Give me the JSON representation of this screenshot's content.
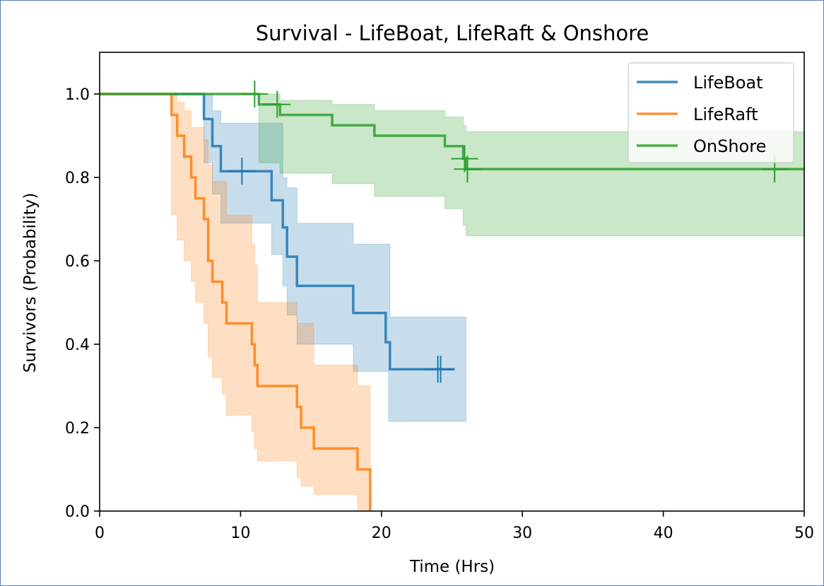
{
  "chart_data": {
    "type": "line",
    "title": "Survival - LifeBoat, LifeRaft & Onshore",
    "xlabel": "Time (Hrs)",
    "ylabel": "Survivors (Probability)",
    "xlim": [
      0,
      50
    ],
    "ylim": [
      0,
      1.1
    ],
    "xticks": [
      0,
      10,
      20,
      30,
      40,
      50
    ],
    "xtick_labels": [
      "0",
      "10",
      "20",
      "30",
      "40",
      "50"
    ],
    "yticks": [
      0.0,
      0.2,
      0.4,
      0.6,
      0.8,
      1.0
    ],
    "ytick_labels": [
      "0.0",
      "0.2",
      "0.4",
      "0.6",
      "0.8",
      "1.0"
    ],
    "grid": false,
    "legend_position": "top-right",
    "series": [
      {
        "name": "LifeBoat",
        "color": "#1f77b4",
        "steps": [
          [
            0,
            1.0
          ],
          [
            7.4,
            0.94
          ],
          [
            8.0,
            0.875
          ],
          [
            8.6,
            0.815
          ],
          [
            12.2,
            0.745
          ],
          [
            13.0,
            0.68
          ],
          [
            13.3,
            0.61
          ],
          [
            14.0,
            0.54
          ],
          [
            18.0,
            0.475
          ],
          [
            20.3,
            0.405
          ],
          [
            20.6,
            0.34
          ]
        ],
        "end_x": 25.2,
        "ci_upper": [
          [
            0,
            1.0
          ],
          [
            7.4,
            1.0
          ],
          [
            8.0,
            0.96
          ],
          [
            8.6,
            0.93
          ],
          [
            12.2,
            0.93
          ],
          [
            13.0,
            0.8
          ],
          [
            13.3,
            0.775
          ],
          [
            14.0,
            0.69
          ],
          [
            18.0,
            0.64
          ],
          [
            20.6,
            0.465
          ],
          [
            26.0,
            0.465
          ]
        ],
        "ci_lower": [
          [
            0,
            1.0
          ],
          [
            7.4,
            0.835
          ],
          [
            8.0,
            0.76
          ],
          [
            8.6,
            0.69
          ],
          [
            12.2,
            0.615
          ],
          [
            13.0,
            0.54
          ],
          [
            13.3,
            0.47
          ],
          [
            14.0,
            0.4
          ],
          [
            18.0,
            0.335
          ],
          [
            20.5,
            0.215
          ],
          [
            26.0,
            0.215
          ]
        ],
        "censored": [
          [
            10.1,
            0.815
          ],
          [
            24.0,
            0.34
          ],
          [
            24.2,
            0.34
          ]
        ]
      },
      {
        "name": "LifeRaft",
        "color": "#ff7f0e",
        "steps": [
          [
            0,
            1.0
          ],
          [
            5.1,
            0.95
          ],
          [
            5.5,
            0.9
          ],
          [
            6.0,
            0.85
          ],
          [
            6.5,
            0.8
          ],
          [
            6.8,
            0.75
          ],
          [
            7.4,
            0.7
          ],
          [
            7.7,
            0.6
          ],
          [
            8.0,
            0.55
          ],
          [
            8.7,
            0.5
          ],
          [
            9.0,
            0.45
          ],
          [
            10.8,
            0.4
          ],
          [
            11.0,
            0.35
          ],
          [
            11.2,
            0.3
          ],
          [
            14.0,
            0.25
          ],
          [
            14.3,
            0.2
          ],
          [
            15.2,
            0.15
          ],
          [
            18.3,
            0.1
          ],
          [
            19.2,
            0.0
          ]
        ],
        "end_x": 19.2,
        "ci_upper": [
          [
            0,
            1.0
          ],
          [
            5.1,
            1.0
          ],
          [
            5.5,
            0.98
          ],
          [
            6.0,
            0.96
          ],
          [
            6.5,
            0.92
          ],
          [
            7.4,
            0.89
          ],
          [
            7.7,
            0.83
          ],
          [
            8.0,
            0.79
          ],
          [
            9.0,
            0.71
          ],
          [
            10.8,
            0.64
          ],
          [
            11.0,
            0.59
          ],
          [
            11.2,
            0.5
          ],
          [
            14.0,
            0.45
          ],
          [
            15.2,
            0.35
          ],
          [
            18.3,
            0.3
          ],
          [
            19.2,
            0.3
          ]
        ],
        "ci_lower": [
          [
            0,
            1.0
          ],
          [
            5.1,
            0.71
          ],
          [
            5.5,
            0.65
          ],
          [
            6.0,
            0.6
          ],
          [
            6.5,
            0.55
          ],
          [
            6.8,
            0.5
          ],
          [
            7.4,
            0.45
          ],
          [
            7.7,
            0.37
          ],
          [
            8.0,
            0.32
          ],
          [
            8.7,
            0.28
          ],
          [
            9.0,
            0.23
          ],
          [
            10.8,
            0.19
          ],
          [
            11.0,
            0.15
          ],
          [
            11.2,
            0.12
          ],
          [
            14.0,
            0.08
          ],
          [
            14.3,
            0.06
          ],
          [
            15.2,
            0.04
          ],
          [
            18.3,
            0.0
          ],
          [
            19.2,
            0.0
          ]
        ],
        "censored": []
      },
      {
        "name": "OnShore",
        "color": "#2ca02c",
        "steps": [
          [
            0,
            1.0
          ],
          [
            11.3,
            0.975
          ],
          [
            12.8,
            0.95
          ],
          [
            16.5,
            0.925
          ],
          [
            19.5,
            0.9
          ],
          [
            24.5,
            0.875
          ],
          [
            25.8,
            0.845
          ],
          [
            26.0,
            0.82
          ]
        ],
        "end_x": 50,
        "ci_upper": [
          [
            0,
            1.0
          ],
          [
            11.3,
            1.0
          ],
          [
            12.8,
            0.985
          ],
          [
            16.5,
            0.975
          ],
          [
            19.5,
            0.96
          ],
          [
            24.5,
            0.945
          ],
          [
            25.8,
            0.925
          ],
          [
            26.0,
            0.91
          ],
          [
            50,
            0.91
          ]
        ],
        "ci_lower": [
          [
            0,
            1.0
          ],
          [
            11.3,
            0.835
          ],
          [
            12.8,
            0.81
          ],
          [
            16.5,
            0.785
          ],
          [
            19.5,
            0.755
          ],
          [
            24.5,
            0.725
          ],
          [
            25.8,
            0.685
          ],
          [
            26.0,
            0.66
          ],
          [
            50,
            0.66
          ]
        ],
        "censored": [
          [
            11.0,
            1.0
          ],
          [
            12.6,
            0.975
          ],
          [
            25.9,
            0.845
          ],
          [
            26.1,
            0.82
          ],
          [
            47.9,
            0.82
          ]
        ]
      }
    ]
  }
}
